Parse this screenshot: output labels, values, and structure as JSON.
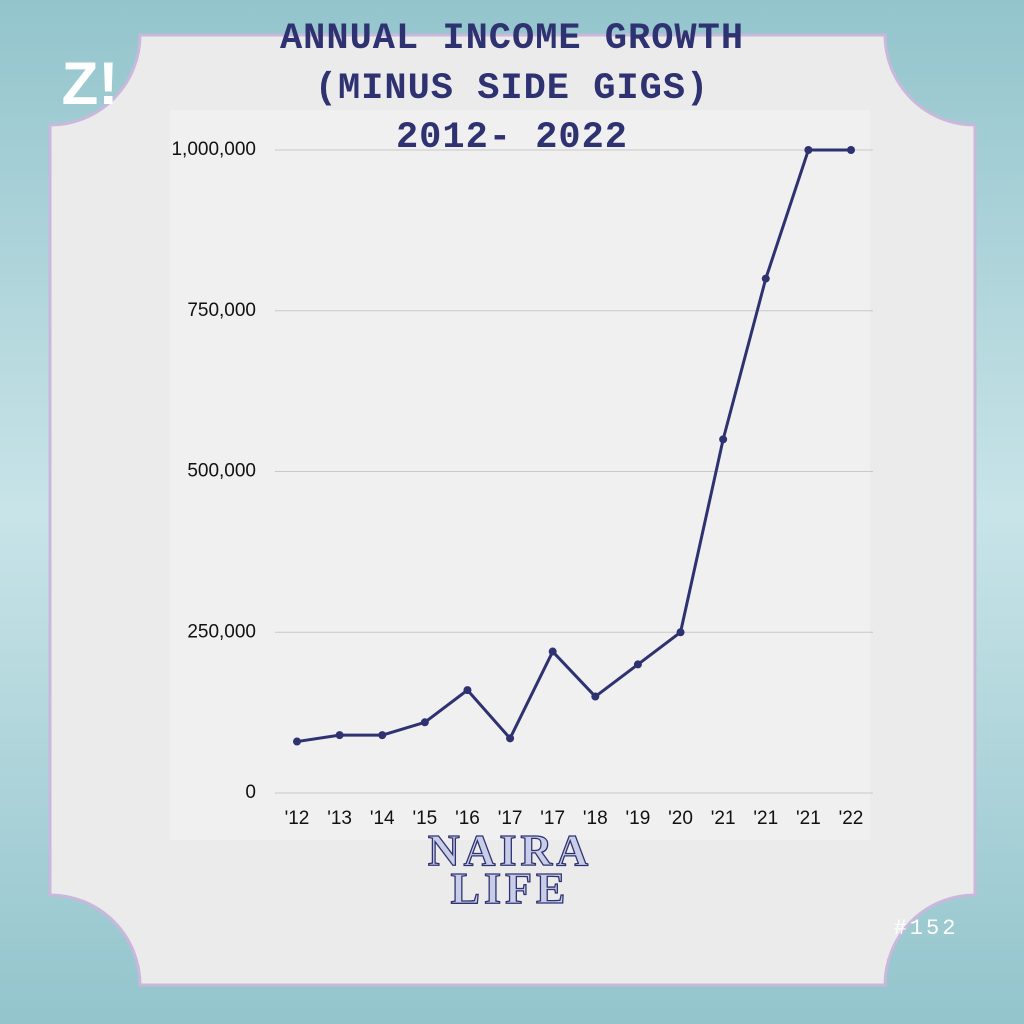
{
  "chart_data": {
    "type": "line",
    "title": [
      "ANNUAL INCOME GROWTH",
      "(MINUS SIDE GIGS)",
      "2012- 2022"
    ],
    "categories": [
      "'12",
      "'13",
      "'14",
      "'15",
      "'16",
      "'17",
      "'17",
      "'18",
      "'19",
      "'20",
      "'21",
      "'21",
      "'21",
      "'22"
    ],
    "values": [
      80000,
      90000,
      90000,
      110000,
      160000,
      85000,
      220000,
      150000,
      200000,
      250000,
      550000,
      800000,
      1000000,
      1000000
    ],
    "color": "#2f3270",
    "ylim": [
      0,
      1000000
    ],
    "yticks": [
      0,
      {
        "value": 250000,
        "label": "250,000"
      },
      {
        "value": 500000,
        "label": "500,000"
      },
      {
        "value": 750000,
        "label": "750,000"
      },
      {
        "value": 1000000,
        "label": "1,000,000"
      }
    ],
    "grid": true
  },
  "branding": {
    "logo": "Z!",
    "name": [
      "NAIRA",
      "LIFE"
    ],
    "issue": "#152"
  }
}
